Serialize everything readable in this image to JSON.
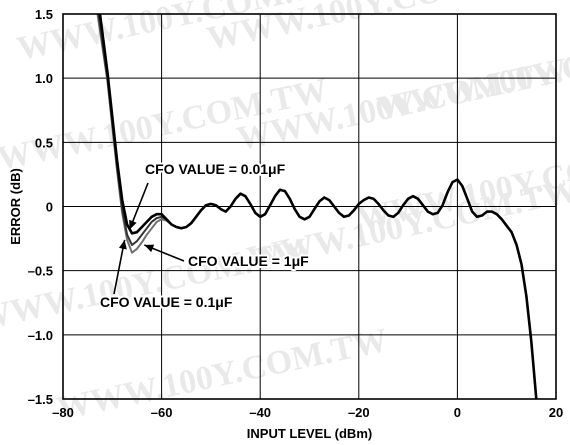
{
  "watermark_text": "WWW.100Y.COM.TW",
  "chart_data": {
    "type": "line",
    "title": "",
    "xlabel": "INPUT LEVEL (dBm)",
    "ylabel": "ERROR (dB)",
    "xlim": [
      -80,
      20
    ],
    "ylim": [
      -1.5,
      1.5
    ],
    "x_ticks": [
      -80,
      -60,
      -40,
      -20,
      0,
      20
    ],
    "x_tick_labels": [
      "–80",
      "–60",
      "–40",
      "–20",
      "0",
      "20"
    ],
    "y_ticks": [
      -1.5,
      -1.0,
      -0.5,
      0,
      0.5,
      1.0,
      1.5
    ],
    "y_tick_labels": [
      "–1.5",
      "–1.0",
      "–0.5",
      "0",
      "0.5",
      "1.0",
      "1.5"
    ],
    "grid": true,
    "legend": "none",
    "series": [
      {
        "name": "CFO VALUE = 0.01μF",
        "color": "#000000",
        "x": [
          -72.5,
          -71,
          -70,
          -69,
          -68,
          -67,
          -66,
          -65,
          -64,
          -63,
          -62,
          -61,
          -60,
          -59,
          -58,
          -57,
          -56,
          -55,
          -54,
          -53,
          -52,
          -51,
          -50,
          -49,
          -48,
          -47,
          -46,
          -45,
          -44,
          -43,
          -42,
          -41,
          -40,
          -39,
          -38,
          -37,
          -36,
          -35,
          -34,
          -33,
          -32,
          -31,
          -30,
          -29,
          -28,
          -27,
          -26,
          -25,
          -24,
          -23,
          -22,
          -21,
          -20,
          -19,
          -18,
          -17,
          -16,
          -15,
          -14,
          -13,
          -12,
          -11,
          -10,
          -9,
          -8,
          -7,
          -6,
          -5,
          -4,
          -3,
          -2,
          -1,
          0,
          1,
          2,
          3,
          4,
          5,
          6,
          7,
          8,
          9,
          10,
          11,
          12,
          13,
          14,
          15,
          16
        ],
        "y": [
          1.5,
          1.05,
          0.7,
          0.35,
          0.05,
          -0.14,
          -0.21,
          -0.2,
          -0.16,
          -0.12,
          -0.08,
          -0.06,
          -0.06,
          -0.1,
          -0.14,
          -0.16,
          -0.17,
          -0.16,
          -0.13,
          -0.08,
          -0.03,
          0.01,
          0.02,
          0.01,
          -0.02,
          -0.04,
          0.0,
          0.06,
          0.1,
          0.08,
          0.02,
          -0.05,
          -0.08,
          -0.06,
          0.01,
          0.08,
          0.13,
          0.12,
          0.06,
          -0.02,
          -0.08,
          -0.1,
          -0.08,
          -0.02,
          0.04,
          0.07,
          0.05,
          0.0,
          -0.05,
          -0.08,
          -0.07,
          -0.03,
          0.02,
          0.05,
          0.07,
          0.06,
          0.02,
          -0.03,
          -0.07,
          -0.08,
          -0.05,
          0.01,
          0.06,
          0.08,
          0.06,
          0.01,
          -0.04,
          -0.06,
          -0.05,
          0.01,
          0.11,
          0.19,
          0.21,
          0.16,
          0.06,
          -0.04,
          -0.08,
          -0.07,
          -0.04,
          -0.04,
          -0.06,
          -0.1,
          -0.15,
          -0.2,
          -0.3,
          -0.45,
          -0.7,
          -1.05,
          -1.5
        ]
      },
      {
        "name": "CFO VALUE = 0.1μF",
        "color": "#333333",
        "x": [
          -72.8,
          -71,
          -70,
          -69,
          -68,
          -67,
          -66,
          -65,
          -64,
          -63,
          -62,
          -61,
          -60,
          -59,
          -58,
          -57,
          -56
        ],
        "y": [
          1.5,
          1.0,
          0.65,
          0.3,
          -0.02,
          -0.22,
          -0.3,
          -0.27,
          -0.22,
          -0.17,
          -0.12,
          -0.09,
          -0.08,
          -0.1,
          -0.14,
          -0.16,
          -0.17
        ]
      },
      {
        "name": "CFO VALUE = 1μF",
        "color": "#707070",
        "x": [
          -73,
          -71,
          -70,
          -69,
          -68,
          -67,
          -66,
          -65,
          -64,
          -63,
          -62,
          -61,
          -60,
          -59,
          -58,
          -57,
          -56
        ],
        "y": [
          1.5,
          0.98,
          0.62,
          0.27,
          -0.05,
          -0.26,
          -0.36,
          -0.33,
          -0.28,
          -0.22,
          -0.17,
          -0.12,
          -0.1,
          -0.11,
          -0.14,
          -0.16,
          -0.17
        ]
      }
    ],
    "annotations": [
      {
        "text": "CFO VALUE = 0.01μF",
        "target_x": -66.5,
        "target_y": -0.18
      },
      {
        "text": "CFO VALUE = 1μF",
        "target_x": -63.5,
        "target_y": -0.3
      },
      {
        "text": "CFO VALUE = 0.1μF",
        "target_x": -67.5,
        "target_y": -0.26
      }
    ]
  }
}
